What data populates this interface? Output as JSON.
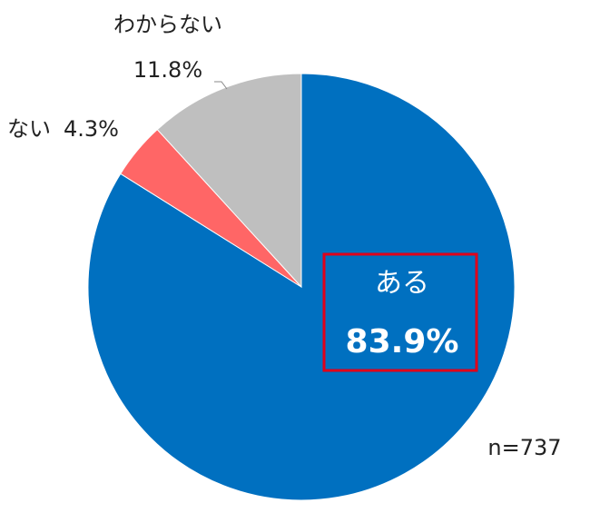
{
  "chart_data": {
    "type": "pie",
    "categories": [
      "ある",
      "ない",
      "わからない"
    ],
    "values": [
      83.9,
      4.3,
      11.8
    ],
    "value_labels": [
      "83.9%",
      "4.3%",
      "11.8%"
    ],
    "colors": [
      "#0070c0",
      "#ff6666",
      "#bfbfbf"
    ],
    "annotation": "n=737"
  }
}
